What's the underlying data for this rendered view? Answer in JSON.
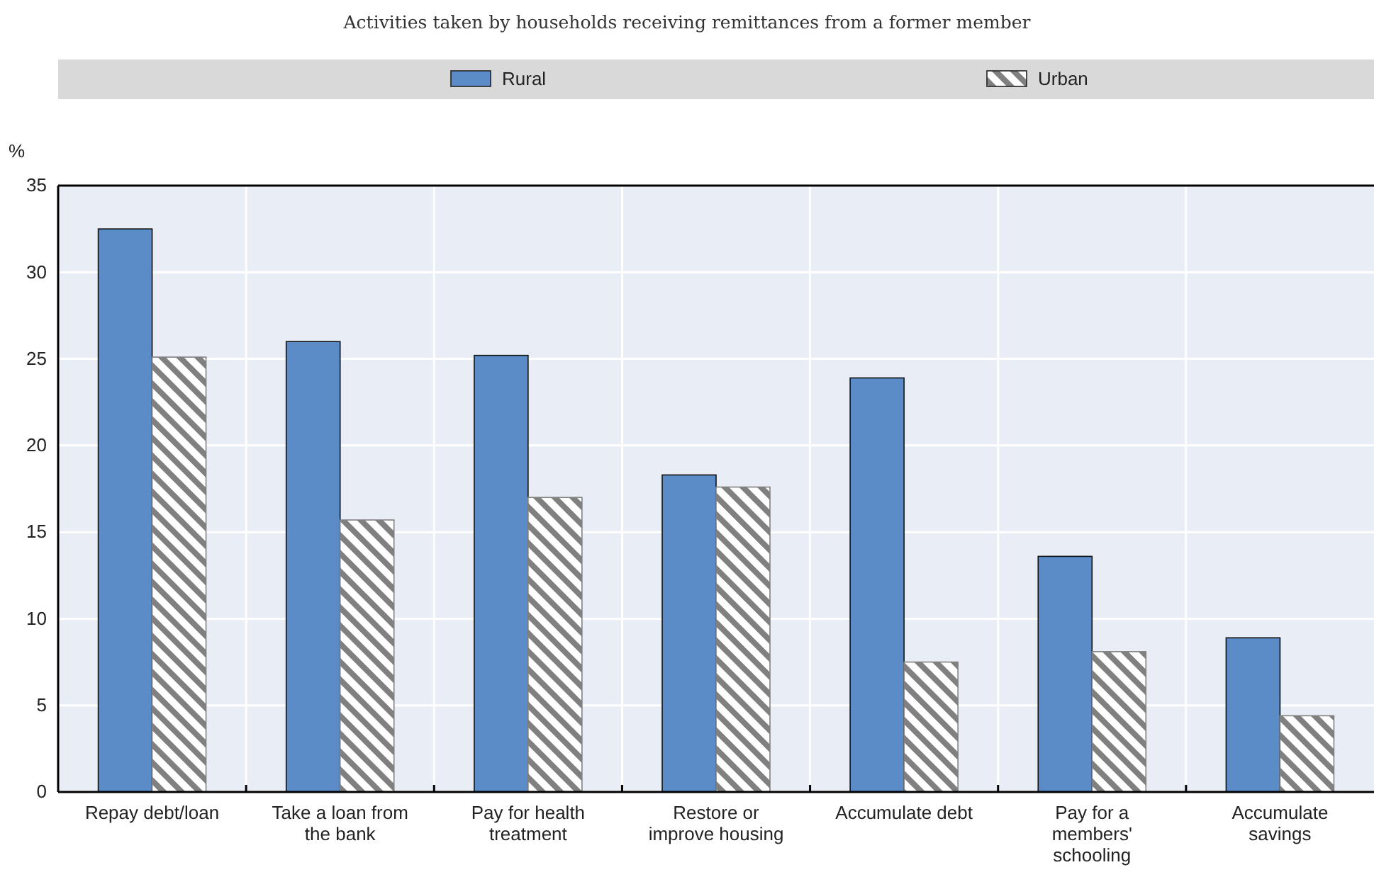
{
  "chart_data": {
    "type": "bar",
    "title": "Activities taken by households receiving remittances from a former member",
    "ylabel": "%",
    "categories": [
      "Repay debt/loan",
      "Take a loan from the bank",
      "Pay for health treatment",
      "Restore or improve housing",
      "Accumulate debt",
      "Pay for a members' schooling",
      "Accumulate savings"
    ],
    "series": [
      {
        "name": "Rural",
        "color": "#5b8cc8",
        "values": [
          32.5,
          26.0,
          25.2,
          18.3,
          23.9,
          13.6,
          8.9
        ]
      },
      {
        "name": "Urban",
        "color": "#808080",
        "values": [
          25.1,
          15.7,
          17.0,
          17.6,
          7.5,
          8.1,
          4.4
        ]
      }
    ],
    "ylim": [
      0,
      35
    ],
    "yticks": [
      0,
      5,
      10,
      15,
      20,
      25,
      30,
      35
    ],
    "grid": true,
    "legend": "top"
  }
}
